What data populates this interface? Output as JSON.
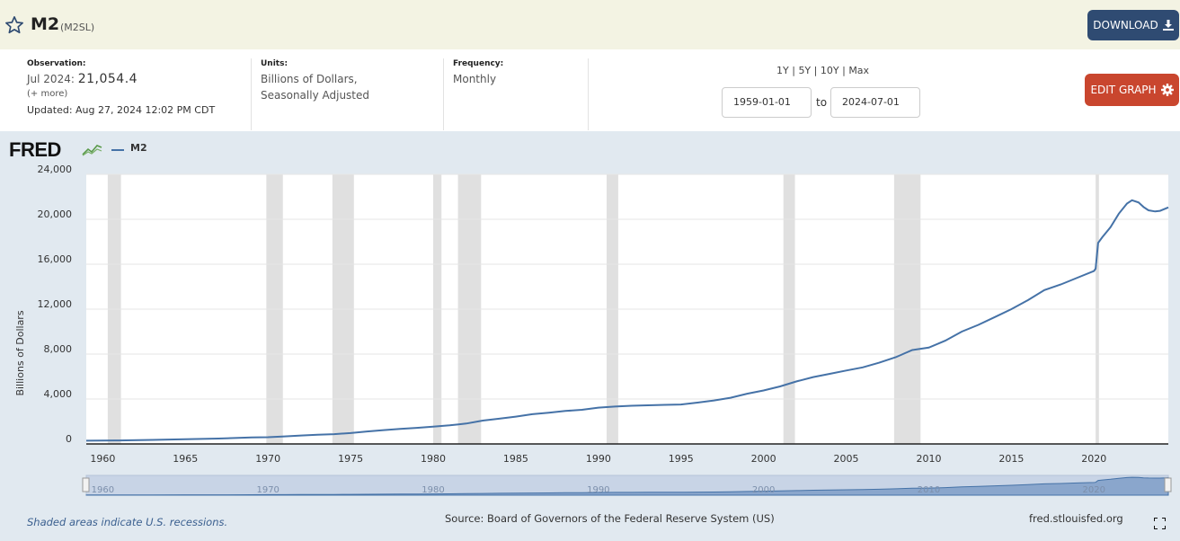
{
  "header": {
    "title": "M2",
    "series_id": "(M2SL)",
    "download_label": "DOWNLOAD"
  },
  "meta": {
    "observation_label": "Observation:",
    "observation_date": "Jul 2024:",
    "observation_value": "21,054.4",
    "more_label": "(+ more)",
    "updated": "Updated: Aug 27, 2024 12:02 PM CDT",
    "units_label": "Units:",
    "units_line1": "Billions of Dollars,",
    "units_line2": "Seasonally Adjusted",
    "frequency_label": "Frequency:",
    "frequency_value": "Monthly"
  },
  "controls": {
    "range_1y": "1Y",
    "range_5y": "5Y",
    "range_10y": "10Y",
    "range_max": "Max",
    "separator": "|",
    "start_date": "1959-01-01",
    "to_label": "to",
    "end_date": "2024-07-01",
    "edit_label": "EDIT GRAPH"
  },
  "chart_data": {
    "type": "line",
    "legend": [
      "M2"
    ],
    "ylabel": "Billions of Dollars",
    "ylim": [
      0,
      24000
    ],
    "yticks": [
      0,
      4000,
      8000,
      12000,
      16000,
      20000,
      24000
    ],
    "ytick_labels": [
      "0",
      "4,000",
      "8,000",
      "12,000",
      "16,000",
      "20,000",
      "24,000"
    ],
    "xlim": [
      1959.0,
      2024.5
    ],
    "xticks": [
      1960,
      1965,
      1970,
      1975,
      1980,
      1985,
      1990,
      1995,
      2000,
      2005,
      2010,
      2015,
      2020
    ],
    "nav_ticks": [
      1960,
      1970,
      1980,
      1990,
      2000,
      2010,
      2020
    ],
    "recessions": [
      [
        1960.3,
        1961.1
      ],
      [
        1969.9,
        1970.9
      ],
      [
        1973.9,
        1975.2
      ],
      [
        1980.0,
        1980.5
      ],
      [
        1981.5,
        1982.9
      ],
      [
        1990.5,
        1991.2
      ],
      [
        2001.2,
        2001.9
      ],
      [
        2007.9,
        2009.5
      ],
      [
        2020.1,
        2020.3
      ]
    ],
    "series": [
      {
        "name": "M2",
        "color": "#4572a7",
        "x": [
          1959.0,
          1961,
          1963,
          1965,
          1967,
          1969,
          1970,
          1971,
          1972,
          1973,
          1974,
          1975,
          1976,
          1977,
          1978,
          1979,
          1980,
          1981,
          1982,
          1983,
          1984,
          1985,
          1986,
          1987,
          1988,
          1989,
          1990,
          1991,
          1992,
          1993,
          1994,
          1995,
          1996,
          1997,
          1998,
          1999,
          2000,
          2001,
          2002,
          2003,
          2004,
          2005,
          2006,
          2007,
          2008,
          2009,
          2010,
          2011,
          2012,
          2013,
          2014,
          2015,
          2016,
          2017,
          2018,
          2019,
          2020.0,
          2020.1,
          2020.25,
          2020.5,
          2021.0,
          2021.5,
          2022.0,
          2022.3,
          2022.7,
          2023.0,
          2023.3,
          2023.7,
          2024.0,
          2024.5
        ],
        "y": [
          287,
          313,
          362,
          420,
          480,
          575,
          601,
          675,
          750,
          815,
          870,
          970,
          1110,
          1230,
          1335,
          1435,
          1540,
          1660,
          1820,
          2080,
          2250,
          2430,
          2650,
          2780,
          2940,
          3040,
          3230,
          3330,
          3400,
          3440,
          3480,
          3510,
          3680,
          3870,
          4110,
          4470,
          4760,
          5120,
          5570,
          5950,
          6240,
          6540,
          6820,
          7230,
          7720,
          8360,
          8580,
          9190,
          10000,
          10600,
          11300,
          12000,
          12800,
          13700,
          14200,
          14800,
          15400,
          15600,
          17900,
          18400,
          19300,
          20500,
          21400,
          21700,
          21500,
          21100,
          20800,
          20700,
          20750,
          21054
        ]
      }
    ]
  },
  "footer": {
    "recession_note": "Shaded areas indicate U.S. recessions.",
    "source": "Source: Board of Governors of the Federal Reserve System (US)",
    "site": "fred.stlouisfed.org"
  },
  "colors": {
    "line": "#4572a7",
    "recession": "#e0e0e0",
    "download": "#2f4b72",
    "edit": "#c9462e"
  }
}
